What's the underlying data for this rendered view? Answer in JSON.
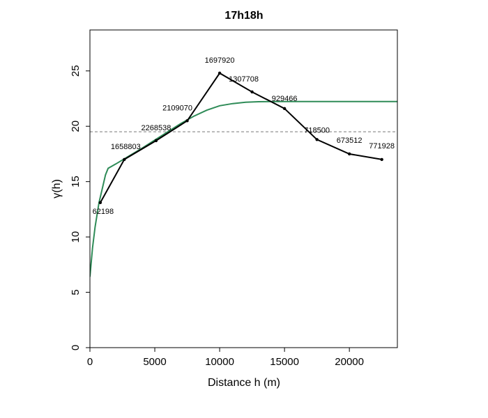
{
  "chart_data": {
    "type": "line",
    "title": "17h18h",
    "xlabel": "Distance h (m)",
    "ylabel": "γ(h)",
    "xlim": [
      0,
      23700
    ],
    "ylim": [
      0,
      28.7
    ],
    "x_ticks": [
      0,
      5000,
      10000,
      15000,
      20000
    ],
    "y_ticks": [
      0,
      5,
      10,
      15,
      20,
      25
    ],
    "grid": false,
    "legend": "none",
    "series": [
      {
        "kind": "empirical",
        "color": "#000000",
        "points": [
          {
            "x": 800,
            "y": 13.1,
            "label": "62198"
          },
          {
            "x": 2650,
            "y": 17.0,
            "label": "1658803"
          },
          {
            "x": 5100,
            "y": 18.7,
            "label": "2268538"
          },
          {
            "x": 7500,
            "y": 20.5,
            "label": "2109070"
          },
          {
            "x": 10000,
            "y": 24.8,
            "label": "1697920"
          },
          {
            "x": 12500,
            "y": 23.1,
            "label": "1307708"
          },
          {
            "x": 15000,
            "y": 21.6,
            "label": "929466"
          },
          {
            "x": 17500,
            "y": 18.8,
            "label": "718500"
          },
          {
            "x": 20000,
            "y": 17.5,
            "label": "673512"
          },
          {
            "x": 22500,
            "y": 17.0,
            "label": "771928"
          }
        ]
      },
      {
        "kind": "model",
        "color": "#2e8b57",
        "points": [
          {
            "x": 0,
            "y": 6.4
          },
          {
            "x": 200,
            "y": 9.0
          },
          {
            "x": 400,
            "y": 10.9
          },
          {
            "x": 700,
            "y": 13.1
          },
          {
            "x": 1000,
            "y": 14.6
          },
          {
            "x": 1200,
            "y": 15.6
          },
          {
            "x": 1400,
            "y": 16.2
          },
          {
            "x": 2000,
            "y": 16.6
          },
          {
            "x": 3000,
            "y": 17.3
          },
          {
            "x": 4000,
            "y": 18.0
          },
          {
            "x": 5000,
            "y": 18.75
          },
          {
            "x": 6000,
            "y": 19.5
          },
          {
            "x": 7000,
            "y": 20.25
          },
          {
            "x": 8000,
            "y": 20.9
          },
          {
            "x": 9000,
            "y": 21.45
          },
          {
            "x": 10000,
            "y": 21.85
          },
          {
            "x": 11000,
            "y": 22.05
          },
          {
            "x": 12000,
            "y": 22.17
          },
          {
            "x": 13000,
            "y": 22.22
          },
          {
            "x": 14000,
            "y": 22.23
          },
          {
            "x": 23700,
            "y": 22.23
          }
        ]
      }
    ],
    "reference_line": {
      "y": 19.5,
      "color": "#777777",
      "style": "dashed"
    }
  }
}
